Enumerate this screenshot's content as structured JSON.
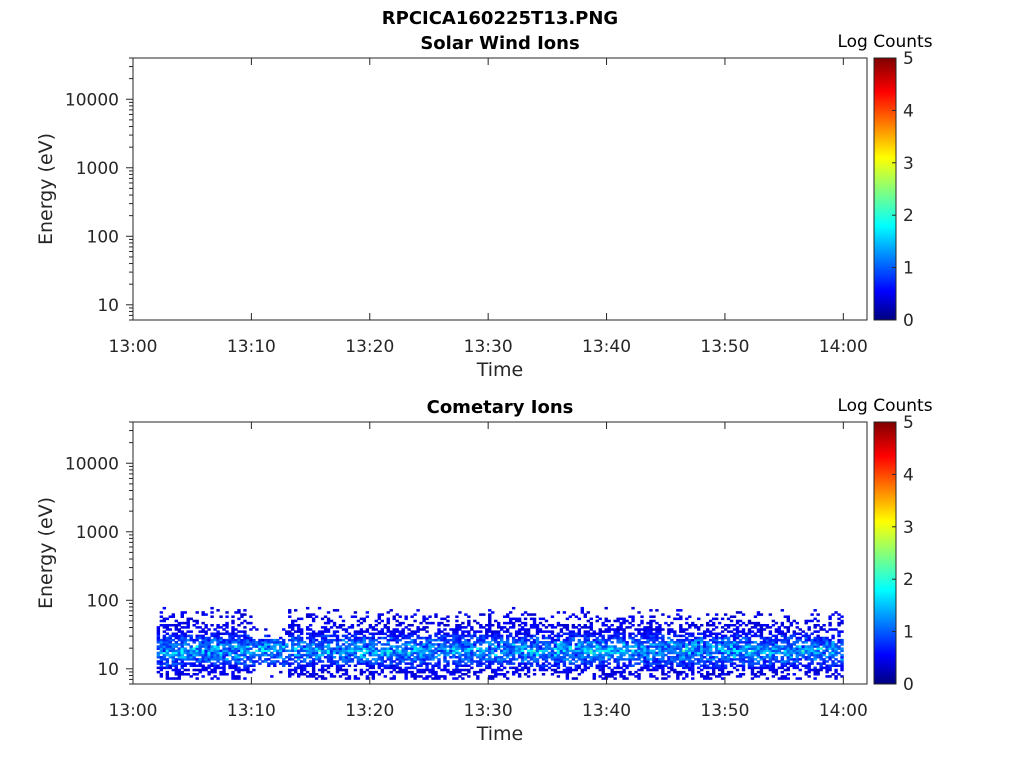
{
  "figure": {
    "title": "RPCICA160225T13.PNG"
  },
  "colormap": {
    "name": "jet",
    "stops": [
      "#00007f",
      "#0000ff",
      "#00ffff",
      "#ffff00",
      "#ff0000",
      "#7f0000"
    ]
  },
  "chart_data": [
    {
      "type": "heatmap",
      "title": "Solar Wind Ions",
      "xlabel": "Time",
      "ylabel": "Energy (eV)",
      "y_scale": "log",
      "x_ticks": [
        "13:00",
        "13:10",
        "13:20",
        "13:30",
        "13:40",
        "13:50",
        "14:00"
      ],
      "y_ticks": [
        "10",
        "100",
        "1000",
        "10000"
      ],
      "xlim": [
        "13:00",
        "14:02"
      ],
      "ylim": [
        6,
        40000
      ],
      "colorbar": {
        "label": "Log Counts",
        "range": [
          0,
          5
        ],
        "ticks": [
          "0",
          "1",
          "2",
          "3",
          "4",
          "5"
        ]
      },
      "data": "empty"
    },
    {
      "type": "heatmap",
      "title": "Cometary Ions",
      "xlabel": "Time",
      "ylabel": "Energy (eV)",
      "y_scale": "log",
      "x_ticks": [
        "13:00",
        "13:10",
        "13:20",
        "13:30",
        "13:40",
        "13:50",
        "14:00"
      ],
      "y_ticks": [
        "10",
        "100",
        "1000",
        "10000"
      ],
      "xlim": [
        "13:00",
        "14:02"
      ],
      "ylim": [
        6,
        40000
      ],
      "colorbar": {
        "label": "Log Counts",
        "range": [
          0,
          5
        ],
        "ticks": [
          "0",
          "1",
          "2",
          "3",
          "4",
          "5"
        ]
      },
      "data": {
        "time_range": [
          "13:02",
          "14:00"
        ],
        "energy_range_ev": [
          7,
          80
        ],
        "peak_energy_ev": 18,
        "peak_log_counts": 1.7,
        "typical_log_counts": 0.5,
        "sparse_gap": [
          "13:10",
          "13:13"
        ]
      }
    }
  ]
}
